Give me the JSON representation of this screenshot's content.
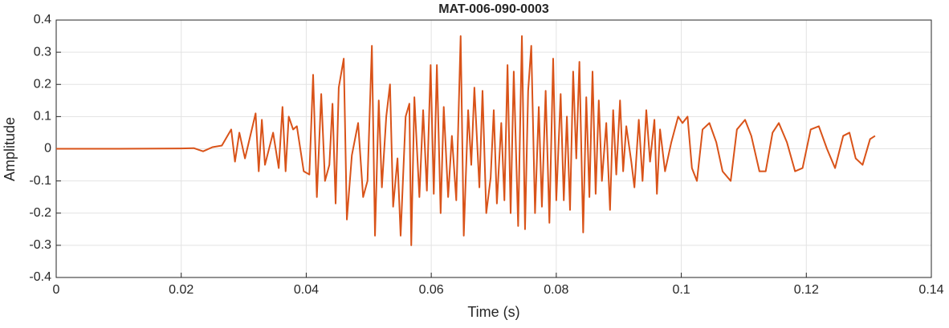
{
  "chart_data": {
    "type": "line",
    "title": "MAT-006-090-0003",
    "xlabel": "Time (s)",
    "ylabel": "Amplitude",
    "color": "#D95319",
    "grid": true,
    "xlim": [
      0,
      0.14
    ],
    "xticks": [
      0,
      0.02,
      0.04,
      0.06,
      0.08,
      0.1,
      0.12,
      0.14
    ],
    "ylim": [
      -0.4,
      0.4
    ],
    "yticks": [
      -0.4,
      -0.3,
      -0.2,
      -0.1,
      0,
      0.1,
      0.2,
      0.3,
      0.4
    ],
    "x": [
      0,
      0.01,
      0.02,
      0.022,
      0.0235,
      0.025,
      0.0265,
      0.028,
      0.0286,
      0.0293,
      0.0302,
      0.0319,
      0.0324,
      0.0329,
      0.0334,
      0.0347,
      0.0356,
      0.0362,
      0.0367,
      0.0372,
      0.0379,
      0.0385,
      0.0396,
      0.0405,
      0.0411,
      0.0417,
      0.0424,
      0.043,
      0.0437,
      0.0442,
      0.0447,
      0.0452,
      0.046,
      0.0465,
      0.0473,
      0.0483,
      0.0491,
      0.0498,
      0.0505,
      0.051,
      0.0516,
      0.0521,
      0.0528,
      0.0534,
      0.0539,
      0.0546,
      0.0551,
      0.0559,
      0.0565,
      0.0568,
      0.0573,
      0.0581,
      0.0587,
      0.0593,
      0.0599,
      0.0604,
      0.0609,
      0.0615,
      0.062,
      0.0627,
      0.0633,
      0.064,
      0.0647,
      0.0652,
      0.0659,
      0.0664,
      0.0669,
      0.0677,
      0.0682,
      0.0688,
      0.0695,
      0.07,
      0.0705,
      0.0712,
      0.0717,
      0.0722,
      0.0727,
      0.0732,
      0.0739,
      0.0745,
      0.075,
      0.0755,
      0.076,
      0.0766,
      0.0772,
      0.0777,
      0.0783,
      0.0789,
      0.0795,
      0.08,
      0.0807,
      0.0812,
      0.0817,
      0.0822,
      0.0827,
      0.0832,
      0.0837,
      0.0843,
      0.0848,
      0.0853,
      0.0858,
      0.0863,
      0.0868,
      0.0873,
      0.088,
      0.0886,
      0.0891,
      0.0896,
      0.0902,
      0.0907,
      0.0912,
      0.092,
      0.0925,
      0.0932,
      0.0938,
      0.0944,
      0.095,
      0.0957,
      0.0961,
      0.0966,
      0.0974,
      0.0984,
      0.0995,
      0.1002,
      0.101,
      0.1017,
      0.1025,
      0.1034,
      0.1045,
      0.1056,
      0.1066,
      0.1079,
      0.1089,
      0.1102,
      0.1112,
      0.1125,
      0.1135,
      0.1146,
      0.1156,
      0.1169,
      0.1182,
      0.1194,
      0.1207,
      0.122,
      0.1233,
      0.1246,
      0.1259,
      0.1269,
      0.1279,
      0.129,
      0.1302,
      0.131
    ],
    "values": [
      0,
      0,
      0.001,
      0.002,
      -0.008,
      0.005,
      0.01,
      0.06,
      -0.04,
      0.05,
      -0.03,
      0.11,
      -0.07,
      0.09,
      -0.05,
      0.05,
      -0.06,
      0.13,
      -0.07,
      0.1,
      0.06,
      0.07,
      -0.07,
      -0.08,
      0.23,
      -0.15,
      0.17,
      -0.1,
      -0.05,
      0.14,
      -0.17,
      0.19,
      0.28,
      -0.22,
      -0.02,
      0.08,
      -0.15,
      -0.1,
      0.32,
      -0.27,
      0.15,
      -0.12,
      0.1,
      0.2,
      -0.18,
      -0.03,
      -0.27,
      0.1,
      0.14,
      -0.3,
      0.16,
      -0.15,
      0.12,
      -0.13,
      0.26,
      -0.14,
      0.26,
      -0.2,
      0.13,
      -0.15,
      0.04,
      -0.16,
      0.35,
      -0.27,
      0.12,
      -0.05,
      0.19,
      -0.12,
      0.18,
      -0.2,
      -0.09,
      0.12,
      -0.17,
      0.08,
      -0.16,
      0.26,
      -0.2,
      0.24,
      -0.24,
      0.35,
      -0.25,
      0.18,
      0.32,
      -0.2,
      0.13,
      -0.18,
      0.18,
      -0.23,
      0.28,
      -0.16,
      0.17,
      -0.16,
      0.1,
      -0.19,
      0.24,
      -0.03,
      0.27,
      -0.26,
      0.16,
      -0.15,
      0.24,
      -0.14,
      0.15,
      -0.1,
      0.08,
      -0.19,
      0.12,
      -0.08,
      0.15,
      -0.07,
      0.07,
      -0.04,
      -0.12,
      0.09,
      -0.1,
      0.12,
      -0.04,
      0.09,
      -0.14,
      0.06,
      -0.07,
      0.02,
      0.1,
      0.08,
      0.1,
      -0.06,
      -0.1,
      0.06,
      0.08,
      0.02,
      -0.07,
      -0.1,
      0.06,
      0.09,
      0.04,
      -0.07,
      -0.07,
      0.05,
      0.08,
      0.02,
      -0.07,
      -0.06,
      0.06,
      0.07,
      0,
      -0.06,
      0.04,
      0.05,
      -0.03,
      -0.05,
      0.03,
      0.04
    ]
  }
}
